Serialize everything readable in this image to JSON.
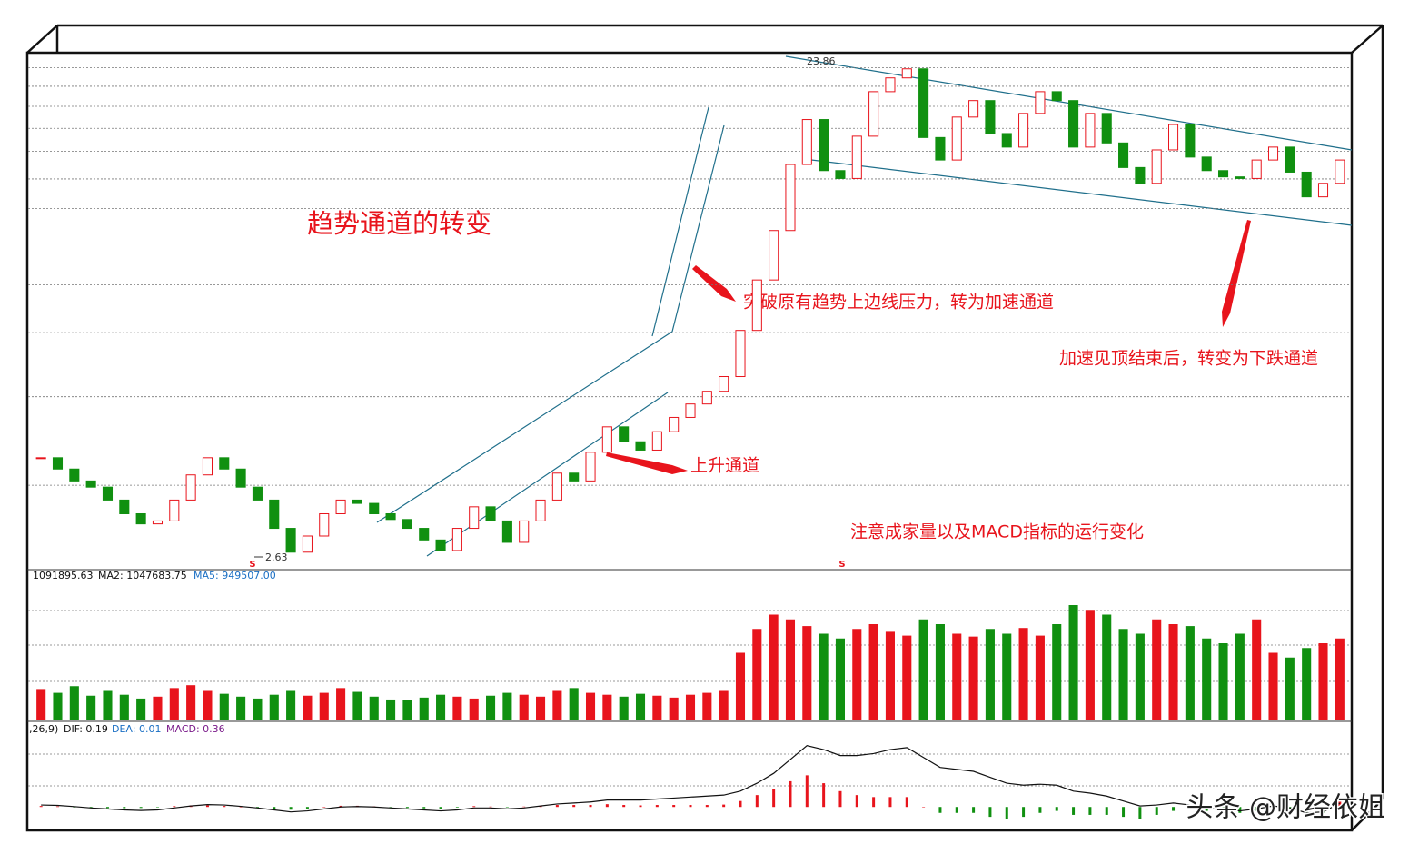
{
  "chart_data": {
    "type": "candlestick",
    "title": "趋势通道的转变",
    "log_scale": true,
    "ylim": [
      2.55,
      24.2
    ],
    "grid_levels": [
      3.63,
      5.37,
      7.13,
      8.81,
      10.6,
      12.35,
      14.07,
      15.9,
      17.6,
      19.4,
      21.2,
      23.0
    ],
    "up_color": "#e8141c",
    "down_color": "#109010",
    "closes": [
      4.1,
      3.9,
      3.7,
      3.6,
      3.4,
      3.2,
      3.06,
      3.1,
      3.4,
      3.8,
      4.1,
      3.9,
      3.6,
      3.4,
      3.0,
      2.7,
      2.9,
      3.2,
      3.4,
      3.35,
      3.2,
      3.12,
      3.0,
      2.85,
      2.72,
      3.0,
      3.3,
      3.1,
      2.82,
      3.1,
      3.4,
      3.83,
      3.7,
      4.2,
      4.7,
      4.4,
      4.24,
      4.6,
      4.9,
      5.2,
      5.5,
      5.87,
      7.2,
      9.0,
      11.2,
      15.0,
      18.3,
      14.6,
      14.1,
      17.0,
      20.7,
      22.0,
      22.9,
      16.9,
      15.3,
      18.5,
      19.9,
      17.2,
      16.2,
      18.8,
      20.7,
      19.9,
      16.2,
      18.8,
      16.5,
      14.8,
      13.8,
      16.0,
      17.9,
      15.5,
      14.6,
      14.2,
      14.1,
      15.3,
      16.2,
      14.5,
      13.0,
      13.8,
      15.3
    ],
    "high_label": 23.86,
    "low_label": 2.63,
    "signals": [
      "S",
      "S"
    ],
    "annotations": [
      "突破原有趋势上边线压力，转为加速通道",
      "上升通道",
      "加速见顶结束后，转变为下跌通道",
      "注意成家量以及MACD指标的运行变化"
    ],
    "volume": {
      "legend": [
        "1091895.63",
        "MA2: 1047683.75",
        "MA5: 949507.00"
      ],
      "ylim": [
        0,
        1400000
      ],
      "values": [
        320000,
        280000,
        350000,
        250000,
        300000,
        260000,
        220000,
        240000,
        330000,
        360000,
        300000,
        270000,
        240000,
        220000,
        260000,
        300000,
        250000,
        280000,
        330000,
        290000,
        240000,
        210000,
        200000,
        230000,
        260000,
        240000,
        220000,
        250000,
        280000,
        260000,
        240000,
        300000,
        330000,
        280000,
        260000,
        240000,
        270000,
        250000,
        230000,
        260000,
        280000,
        300000,
        700000,
        950000,
        1100000,
        1050000,
        980000,
        900000,
        850000,
        950000,
        1000000,
        920000,
        880000,
        1050000,
        1000000,
        900000,
        870000,
        950000,
        900000,
        960000,
        880000,
        1000000,
        1200000,
        1150000,
        1100000,
        950000,
        900000,
        1050000,
        1000000,
        980000,
        850000,
        800000,
        900000,
        1050000,
        700000,
        650000,
        750000,
        800000,
        850000
      ]
    },
    "macd": {
      "legend": [
        ",26,9)",
        "DIF: 0.19",
        "DEA: 0.01",
        "MACD: 0.36"
      ],
      "ylim": [
        -1,
        3.5
      ],
      "dif": [
        0.1,
        0.08,
        0.02,
        -0.05,
        -0.1,
        -0.15,
        -0.18,
        -0.15,
        -0.05,
        0.05,
        0.12,
        0.1,
        0.03,
        -0.05,
        -0.15,
        -0.25,
        -0.2,
        -0.1,
        0,
        0.02,
        0,
        -0.05,
        -0.1,
        -0.15,
        -0.2,
        -0.15,
        -0.05,
        -0.05,
        -0.1,
        -0.05,
        0.05,
        0.15,
        0.2,
        0.25,
        0.35,
        0.35,
        0.35,
        0.4,
        0.45,
        0.5,
        0.55,
        0.6,
        0.8,
        1.2,
        1.7,
        2.4,
        3.1,
        2.9,
        2.6,
        2.6,
        2.7,
        2.9,
        3.0,
        2.5,
        2.0,
        1.9,
        1.8,
        1.5,
        1.2,
        1.1,
        1.15,
        1.1,
        0.8,
        0.7,
        0.55,
        0.3,
        0.05,
        0.1,
        0.2,
        0.1,
        -0.05,
        -0.15,
        -0.2,
        -0.1,
        0.05,
        -0.05,
        -0.3,
        -0.25,
        0.19
      ],
      "hist": [
        0.05,
        0.03,
        -0.02,
        -0.05,
        -0.06,
        -0.06,
        -0.05,
        -0.02,
        0.04,
        0.08,
        0.08,
        0.05,
        0,
        -0.05,
        -0.1,
        -0.14,
        -0.08,
        0,
        0.06,
        0.06,
        0.03,
        -0.02,
        -0.05,
        -0.07,
        -0.08,
        -0.03,
        0.04,
        0.02,
        -0.02,
        0.02,
        0.06,
        0.1,
        0.1,
        0.1,
        0.14,
        0.1,
        0.08,
        0.1,
        0.1,
        0.1,
        0.1,
        0.12,
        0.3,
        0.6,
        0.9,
        1.3,
        1.6,
        1.2,
        0.8,
        0.6,
        0.5,
        0.5,
        0.5,
        0,
        -0.3,
        -0.3,
        -0.3,
        -0.5,
        -0.6,
        -0.5,
        -0.3,
        -0.2,
        -0.4,
        -0.4,
        -0.4,
        -0.5,
        -0.6,
        -0.4,
        -0.2,
        -0.1,
        -0.2,
        -0.3,
        -0.3,
        -0.2,
        0,
        -0.1,
        -0.4,
        -0.3,
        0.36
      ]
    },
    "watermark": "头条 @财经依姐"
  }
}
